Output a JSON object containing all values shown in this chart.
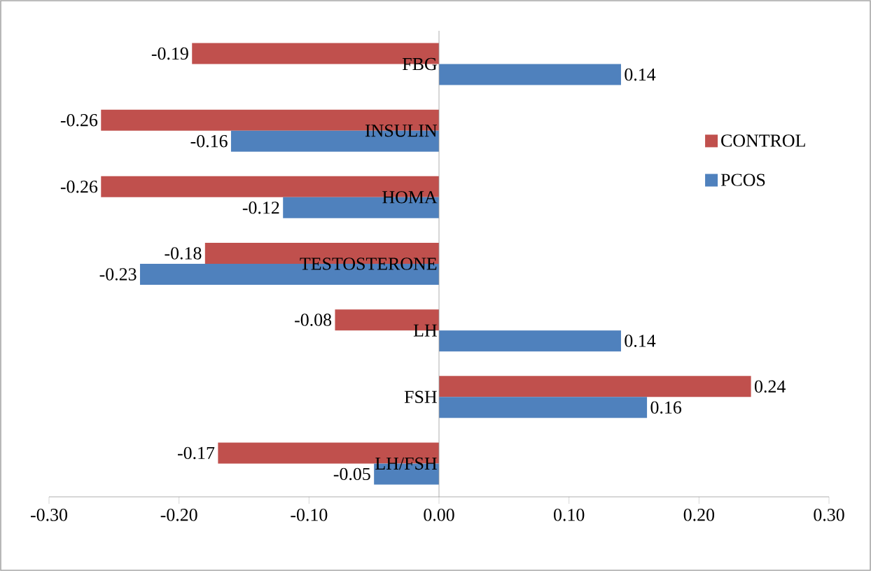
{
  "chart_data": {
    "type": "bar",
    "orientation": "horizontal",
    "categories": [
      "FBG",
      "INSULIN",
      "HOMA",
      "TESTOSTERONE",
      "LH",
      "FSH",
      "LH/FSH"
    ],
    "series": [
      {
        "name": "CONTROL",
        "color": "#c0504d",
        "values": [
          -0.19,
          -0.26,
          -0.26,
          -0.18,
          -0.08,
          0.24,
          -0.17
        ],
        "value_labels": [
          "-0.19",
          "-0.26",
          "-0.26",
          "-0.18",
          "-0.08",
          "0.24",
          "-0.17"
        ]
      },
      {
        "name": "PCOS",
        "color": "#4f81bd",
        "values": [
          0.14,
          -0.16,
          -0.12,
          -0.23,
          0.14,
          0.16,
          -0.05
        ],
        "value_labels": [
          "0.14",
          "-0.16",
          "-0.12",
          "-0.23",
          "0.14",
          "0.16",
          "-0.05"
        ]
      }
    ],
    "xlim": [
      -0.3,
      0.3
    ],
    "xticks": [
      {
        "value": -0.3,
        "label": "-0.30"
      },
      {
        "value": -0.2,
        "label": "-0.20"
      },
      {
        "value": -0.1,
        "label": "-0.10"
      },
      {
        "value": 0,
        "label": "0.00"
      },
      {
        "value": 0.1,
        "label": "0.10"
      },
      {
        "value": 0.2,
        "label": "0.20"
      },
      {
        "value": 0.3,
        "label": "0.30"
      }
    ],
    "legend": "right"
  }
}
